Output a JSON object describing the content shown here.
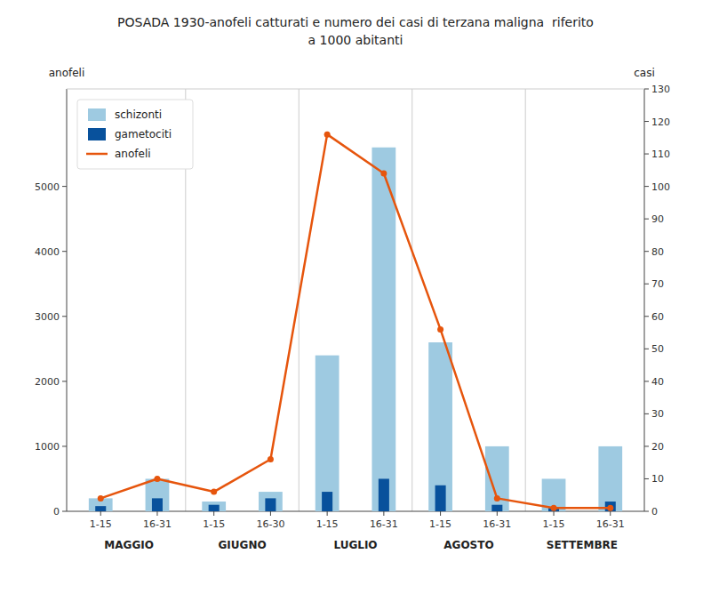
{
  "chart_data": {
    "type": "bar",
    "title": "POSADA 1930-anofeli catturati e numero dei casi di terzana maligna  riferito",
    "subtitle": "a 1000 abitanti",
    "ylabel": "anofeli",
    "y2label": "casi",
    "categories": [
      "1-15",
      "16-31",
      "1-15",
      "16-30",
      "1-15",
      "16-31",
      "1-15",
      "16-31",
      "1-15",
      "16-31"
    ],
    "category_groups": [
      "MAGGIO",
      "GIUGNO",
      "LUGLIO",
      "AGOSTO",
      "SETTEMBRE"
    ],
    "series": [
      {
        "name": "schizonti",
        "type": "bar",
        "color": "#9ecae1",
        "values": [
          200,
          500,
          150,
          300,
          2400,
          5600,
          2600,
          1000,
          500,
          1000
        ]
      },
      {
        "name": "gametociti",
        "type": "bar",
        "color": "#08519c",
        "values": [
          80,
          200,
          100,
          200,
          300,
          500,
          400,
          100,
          50,
          150
        ]
      },
      {
        "name": "anofeli",
        "type": "line",
        "color": "#e6550d",
        "values": [
          200,
          500,
          300,
          800,
          5800,
          5200,
          2800,
          200,
          50,
          50
        ]
      }
    ],
    "ylim": [
      0,
      6500
    ],
    "yticks": [
      0,
      1000,
      2000,
      3000,
      4000,
      5000
    ],
    "y2lim": [
      0,
      130
    ],
    "y2ticks": [
      0,
      10,
      20,
      30,
      40,
      50,
      60,
      70,
      80,
      90,
      100,
      110,
      120,
      130
    ],
    "grid": false,
    "legend": "upper left"
  }
}
